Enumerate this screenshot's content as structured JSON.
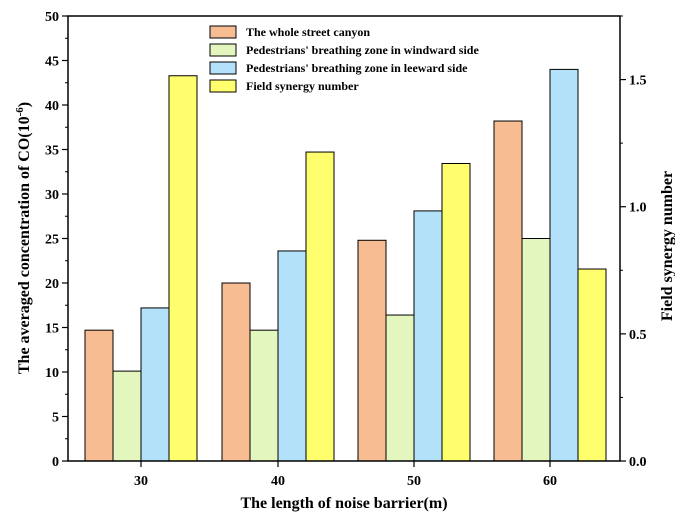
{
  "chart_data": {
    "type": "bar",
    "categories": [
      "30",
      "40",
      "50",
      "60"
    ],
    "series": [
      {
        "name": "The whole street canyon",
        "axis": "left",
        "color": "#F8BC93",
        "values": [
          14.7,
          20.0,
          24.8,
          38.2
        ]
      },
      {
        "name": "Pedestrians' breathing zone in windward side",
        "axis": "left",
        "color": "#E2F6BE",
        "values": [
          10.1,
          14.7,
          16.4,
          25.0
        ]
      },
      {
        "name": "Pedestrians' breathing zone in leeward side",
        "axis": "left",
        "color": "#B4E1FA",
        "values": [
          17.2,
          23.6,
          28.1,
          44.0
        ]
      },
      {
        "name": "Field synergy number",
        "axis": "right",
        "color": "#FFFF6E",
        "values": [
          1.515,
          1.215,
          1.17,
          0.755
        ]
      }
    ],
    "xlabel": "The length of noise barrier(m)",
    "ylabel": "The averaged concentration of CO(10",
    "ylabel_sup": "-6",
    "ylabel_end": ")",
    "y2label": "Field synergy number",
    "ylim": [
      0,
      50
    ],
    "y2lim": [
      0,
      1.75
    ],
    "yticks": [
      "0",
      "5",
      "10",
      "15",
      "20",
      "25",
      "30",
      "35",
      "40",
      "45",
      "50"
    ],
    "y2ticks": [
      "0.0",
      "0.5",
      "1.0",
      "1.5"
    ],
    "legend_position": "top-center",
    "grid": false
  }
}
